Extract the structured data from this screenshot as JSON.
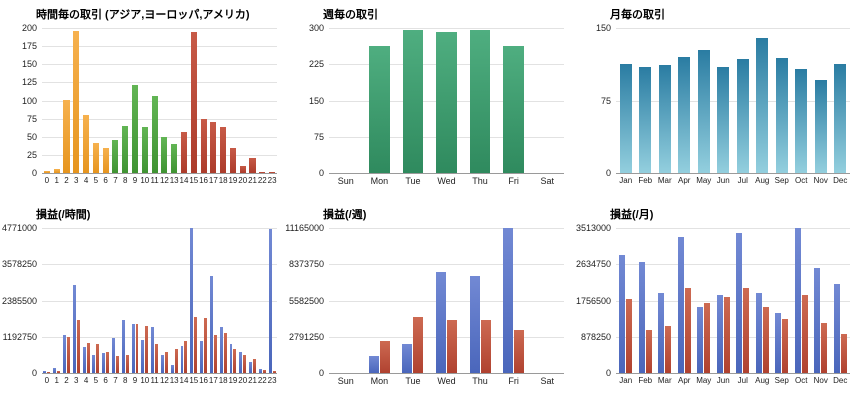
{
  "palette": {
    "grid_color": "#e2e2e2",
    "axis_color": "#9a9a9a",
    "label_color": "#222222",
    "asia_orange": "#eda136",
    "europe_green": "#4aa23c",
    "america_red": "#bf4a3a",
    "week_green": "#3f9e72",
    "month_teal": "#2a7ca2",
    "pnl_blue": "#5571c6",
    "pnl_red": "#bf5440"
  },
  "chart_data": [
    {
      "id": "hourly-trades",
      "type": "bar",
      "title": "時間毎の取引 (アジア,ヨーロッパ,アメリカ)",
      "categories": [
        "0",
        "1",
        "2",
        "3",
        "4",
        "5",
        "6",
        "7",
        "8",
        "9",
        "10",
        "11",
        "12",
        "13",
        "14",
        "15",
        "16",
        "17",
        "18",
        "19",
        "20",
        "21",
        "22",
        "23"
      ],
      "ymax": 200,
      "yticks": [
        0,
        25,
        50,
        75,
        100,
        125,
        150,
        175,
        200
      ],
      "series": [
        {
          "name": "trades",
          "values": [
            3,
            6,
            100,
            196,
            80,
            42,
            35,
            46,
            65,
            121,
            63,
            106,
            50,
            40,
            56,
            194,
            75,
            70,
            63,
            35,
            9,
            20,
            2,
            2
          ],
          "segments": [
            {
              "label": "アジア",
              "start": 0,
              "end": 6,
              "color_top": "#f6b14e",
              "color_bottom": "#e6951f"
            },
            {
              "label": "ヨーロッパ",
              "start": 7,
              "end": 13,
              "color_top": "#62b554",
              "color_bottom": "#3f9332"
            },
            {
              "label": "アメリカ",
              "start": 14,
              "end": 23,
              "color_top": "#c75a47",
              "color_bottom": "#ac3c2b"
            }
          ]
        }
      ]
    },
    {
      "id": "weekly-trades",
      "type": "bar",
      "title": "週毎の取引",
      "categories": [
        "Sun",
        "Mon",
        "Tue",
        "Wed",
        "Thu",
        "Fri",
        "Sat"
      ],
      "ymax": 300,
      "yticks": [
        0,
        75,
        150,
        225,
        300
      ],
      "series": [
        {
          "name": "trades",
          "color_top": "#4fae80",
          "color_bottom": "#2f8a5e",
          "values": [
            0,
            262,
            295,
            292,
            295,
            263,
            0
          ]
        }
      ]
    },
    {
      "id": "monthly-trades",
      "type": "bar",
      "title": "月毎の取引",
      "categories": [
        "Jan",
        "Feb",
        "Mar",
        "Apr",
        "May",
        "Jun",
        "Jul",
        "Aug",
        "Sep",
        "Oct",
        "Nov",
        "Dec"
      ],
      "ymax": 150,
      "yticks": [
        0,
        75,
        150
      ],
      "series": [
        {
          "name": "trades",
          "color_top": "#2a7ca2",
          "color_bottom": "#93cfde",
          "values": [
            113,
            110,
            112,
            120,
            127,
            110,
            118,
            140,
            119,
            108,
            96,
            113
          ]
        }
      ]
    },
    {
      "id": "hourly-pnl",
      "type": "grouped-bar",
      "title": "損益(/時間)",
      "categories": [
        "0",
        "1",
        "2",
        "3",
        "4",
        "5",
        "6",
        "7",
        "8",
        "9",
        "10",
        "11",
        "12",
        "13",
        "14",
        "15",
        "16",
        "17",
        "18",
        "19",
        "20",
        "21",
        "22",
        "23"
      ],
      "ymax": 4771000,
      "yticks": [
        0,
        1192750,
        2385500,
        3578250,
        4771000
      ],
      "series": [
        {
          "name": "blue",
          "color_top": "#7289d4",
          "color_bottom": "#4a66bb",
          "values": [
            80000,
            150000,
            1250000,
            2900000,
            850000,
            600000,
            650000,
            1150000,
            1750000,
            1600000,
            1100000,
            1500000,
            600000,
            250000,
            900000,
            4771000,
            1050000,
            3200000,
            1500000,
            950000,
            700000,
            350000,
            120000,
            4750000
          ]
        },
        {
          "name": "red",
          "color_top": "#cd6a52",
          "color_bottom": "#b04230",
          "values": [
            40000,
            80000,
            1200000,
            1750000,
            1000000,
            950000,
            700000,
            550000,
            600000,
            1600000,
            1550000,
            950000,
            700000,
            800000,
            1050000,
            1850000,
            1800000,
            1250000,
            1300000,
            800000,
            600000,
            450000,
            100000,
            50000
          ]
        }
      ]
    },
    {
      "id": "weekly-pnl",
      "type": "grouped-bar",
      "title": "損益(/週)",
      "categories": [
        "Sun",
        "Mon",
        "Tue",
        "Wed",
        "Thu",
        "Fri",
        "Sat"
      ],
      "ymax": 11165000,
      "yticks": [
        0,
        2791250,
        5582500,
        8373750,
        11165000
      ],
      "series": [
        {
          "name": "blue",
          "color_top": "#7289d4",
          "color_bottom": "#4a66bb",
          "values": [
            0,
            1300000,
            2200000,
            7800000,
            7500000,
            11165000,
            0
          ]
        },
        {
          "name": "red",
          "color_top": "#cd6a52",
          "color_bottom": "#b04230",
          "values": [
            0,
            2500000,
            4300000,
            4100000,
            4050000,
            3300000,
            0
          ]
        }
      ]
    },
    {
      "id": "monthly-pnl",
      "type": "grouped-bar",
      "title": "損益(/月)",
      "categories": [
        "Jan",
        "Feb",
        "Mar",
        "Apr",
        "May",
        "Jun",
        "Jul",
        "Aug",
        "Sep",
        "Oct",
        "Nov",
        "Dec"
      ],
      "ymax": 3513000,
      "yticks": [
        0,
        878250,
        1756500,
        2634750,
        3513000
      ],
      "series": [
        {
          "name": "blue",
          "color_top": "#7289d4",
          "color_bottom": "#4a66bb",
          "values": [
            2850000,
            2700000,
            1950000,
            3300000,
            1600000,
            1900000,
            3400000,
            1950000,
            1450000,
            3513000,
            2550000,
            2150000
          ]
        },
        {
          "name": "red",
          "color_top": "#cd6a52",
          "color_bottom": "#b04230",
          "values": [
            1800000,
            1050000,
            1150000,
            2050000,
            1700000,
            1850000,
            2050000,
            1600000,
            1300000,
            1900000,
            1200000,
            950000
          ]
        }
      ]
    }
  ]
}
